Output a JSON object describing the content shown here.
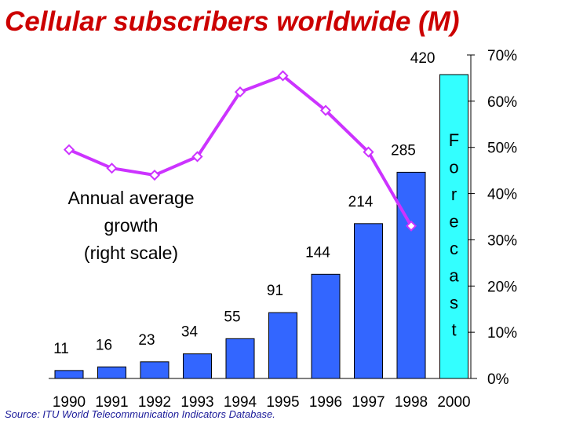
{
  "title": "Cellular subscribers worldwide (M)",
  "source": "Source: ITU World Telecommunication Indicators Database.",
  "chart_data": {
    "type": "bar",
    "categories": [
      "1990",
      "1991",
      "1992",
      "1993",
      "1994",
      "1995",
      "1996",
      "1997",
      "1998",
      "2000"
    ],
    "bar_values": [
      11,
      16,
      23,
      34,
      55,
      91,
      144,
      214,
      285,
      420
    ],
    "bar_labels": [
      "11",
      "16",
      "23",
      "34",
      "55",
      "91",
      "144",
      "214",
      "285",
      "420"
    ],
    "bar_color": "#3366ff",
    "forecast_bar_color": "#33ffff",
    "forecast_category": "2000",
    "forecast_label": [
      "F",
      "o",
      "r",
      "e",
      "c",
      "a",
      "s",
      "t"
    ],
    "line_series": {
      "x": [
        "1990",
        "1991",
        "1992",
        "1993",
        "1994",
        "1995",
        "1996",
        "1997",
        "1998"
      ],
      "values": [
        49.5,
        45.5,
        44,
        48,
        62,
        65.5,
        58,
        49,
        33
      ],
      "color": "#cc33ff"
    },
    "line_annotation": [
      "Annual average",
      "growth",
      "(right scale)"
    ],
    "y_left_range": [
      0,
      420
    ],
    "y_right_range": [
      0,
      70
    ],
    "y_right_ticks": [
      "0%",
      "10%",
      "20%",
      "30%",
      "40%",
      "50%",
      "60%",
      "70%"
    ],
    "grid": false,
    "legend": "none"
  }
}
